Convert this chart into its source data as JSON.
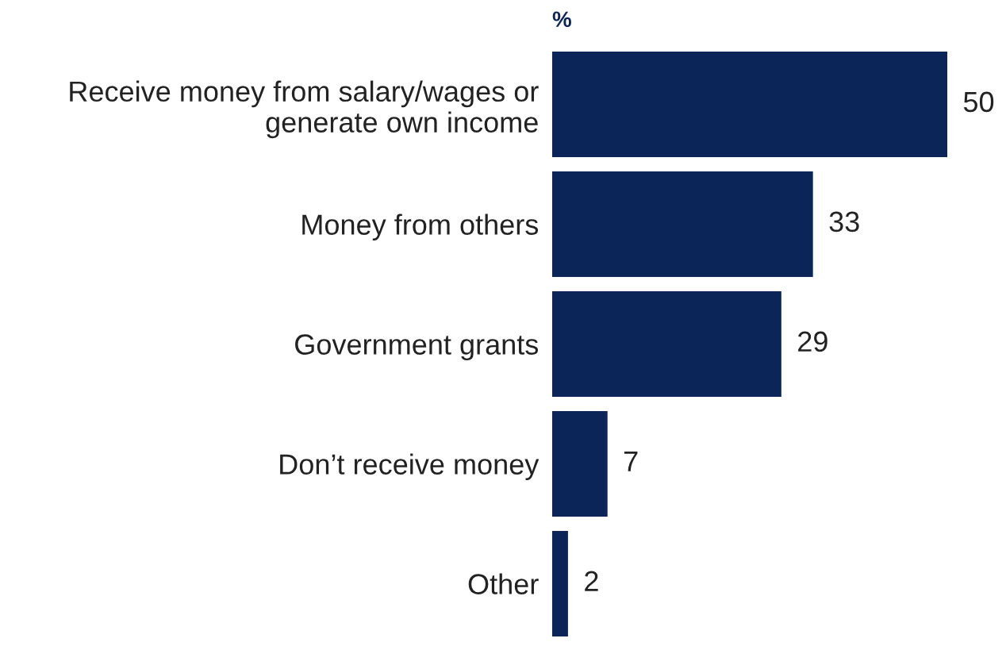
{
  "chart_data": {
    "type": "bar",
    "orientation": "horizontal",
    "title": "%",
    "categories": [
      "Receive money from salary/wages or\ngenerate own income",
      "Money from others",
      "Government grants",
      "Don’t receive money",
      "Other"
    ],
    "values": [
      50,
      33,
      29,
      7,
      2
    ],
    "color": "#0b2558",
    "data_labels": true,
    "grid": false,
    "legend": false
  }
}
